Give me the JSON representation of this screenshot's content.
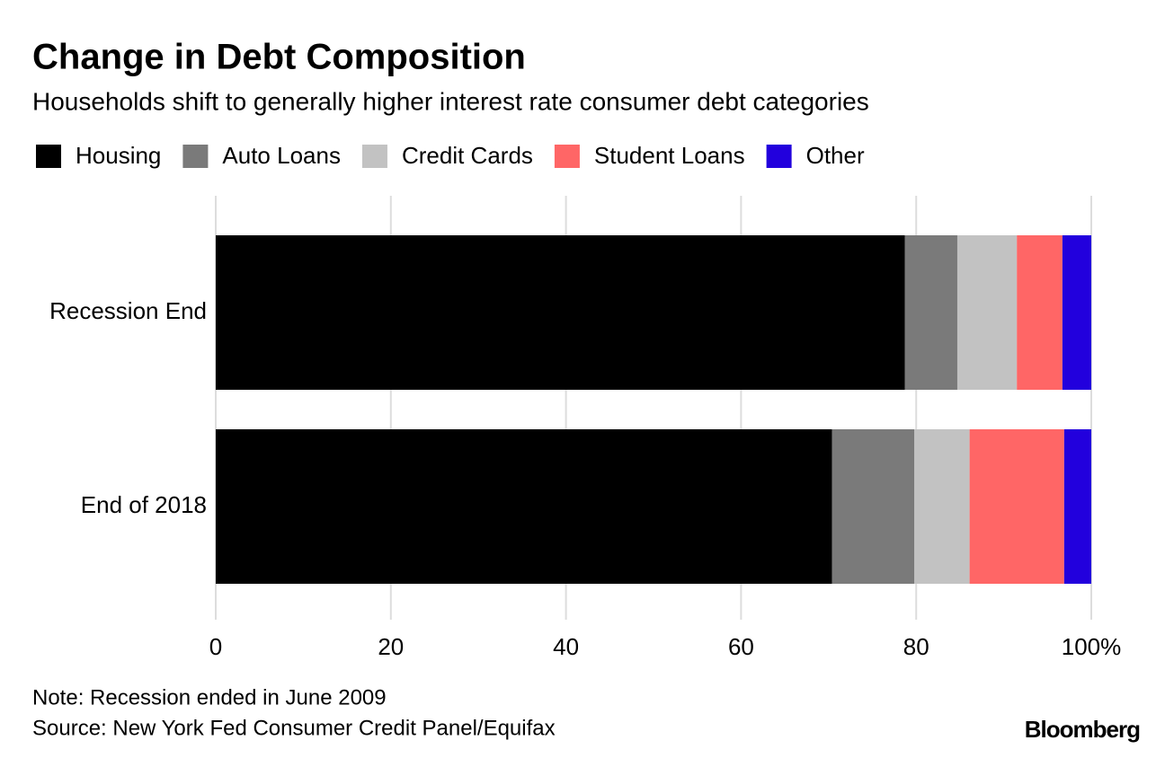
{
  "chart_data": {
    "type": "stacked-bar-horizontal",
    "title": "Change in Debt Composition",
    "subtitle": "Households shift to generally higher interest rate consumer debt categories",
    "categories": [
      "Recession End",
      "End of 2018"
    ],
    "series": [
      {
        "name": "Housing",
        "color": "#000000",
        "values": [
          78.7,
          70.4
        ]
      },
      {
        "name": "Auto Loans",
        "color": "#7a7a7a",
        "values": [
          6.0,
          9.4
        ]
      },
      {
        "name": "Credit Cards",
        "color": "#c2c2c2",
        "values": [
          6.8,
          6.3
        ]
      },
      {
        "name": "Student Loans",
        "color": "#ff6666",
        "values": [
          5.2,
          10.8
        ]
      },
      {
        "name": "Other",
        "color": "#2200dd",
        "values": [
          3.3,
          3.1
        ]
      }
    ],
    "xlim": [
      0,
      100
    ],
    "xticks": [
      0,
      20,
      40,
      60,
      80,
      {
        "value": 100,
        "label": "100%"
      }
    ],
    "grid": true,
    "notes": [
      "Note: Recession ended in June 2009",
      "Source: New York Fed Consumer Credit Panel/Equifax"
    ],
    "brand": "Bloomberg"
  }
}
